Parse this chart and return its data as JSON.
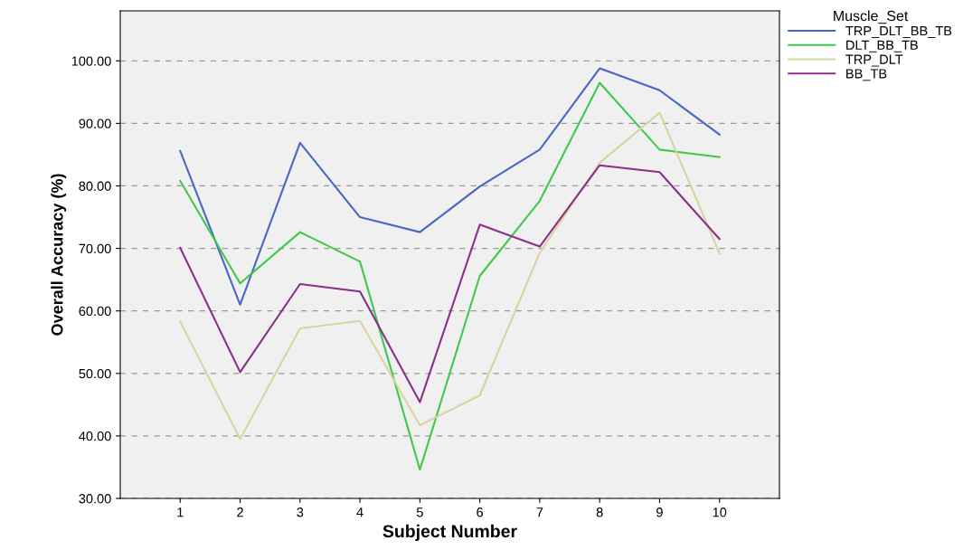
{
  "chart_data": {
    "type": "line",
    "xlabel": "Subject Number",
    "ylabel": "Overall Accuracy (%)",
    "legend_title": "Muscle_Set",
    "x": [
      1,
      2,
      3,
      4,
      5,
      6,
      7,
      8,
      9,
      10
    ],
    "series": [
      {
        "name": "TRP_DLT_BB_TB",
        "color": "#4a66c4",
        "values": [
          85.6,
          61.0,
          86.9,
          75.0,
          72.6,
          79.9,
          85.8,
          98.8,
          95.3,
          88.2
        ]
      },
      {
        "name": "DLT_BB_TB",
        "color": "#3ec94a",
        "values": [
          80.8,
          64.4,
          72.6,
          67.9,
          34.6,
          65.6,
          77.6,
          96.5,
          85.8,
          84.6
        ]
      },
      {
        "name": "TRP_DLT",
        "color": "#d9d3a0",
        "values": [
          58.3,
          39.5,
          57.2,
          58.4,
          41.7,
          46.5,
          69.3,
          83.7,
          91.7,
          69.2
        ]
      },
      {
        "name": "BB_TB",
        "color": "#8a2f8a",
        "values": [
          70.1,
          50.2,
          64.3,
          63.1,
          45.4,
          73.8,
          70.3,
          83.3,
          82.2,
          71.5
        ]
      }
    ],
    "xlim": [
      0,
      11
    ],
    "xticks": [
      1,
      2,
      3,
      4,
      5,
      6,
      7,
      8,
      9,
      10
    ],
    "ylim": [
      30,
      108
    ],
    "yticks": [
      {
        "value": 30,
        "label": "30.00"
      },
      {
        "value": 40,
        "label": "40.00"
      },
      {
        "value": 50,
        "label": "50.00"
      },
      {
        "value": 60,
        "label": "60.00"
      },
      {
        "value": 70,
        "label": "70.00"
      },
      {
        "value": 80,
        "label": "80.00"
      },
      {
        "value": 90,
        "label": "90.00"
      },
      {
        "value": 100,
        "label": "100.00"
      }
    ],
    "grid": "y",
    "legend": "top right",
    "marker": "none",
    "line_style": "solid"
  }
}
